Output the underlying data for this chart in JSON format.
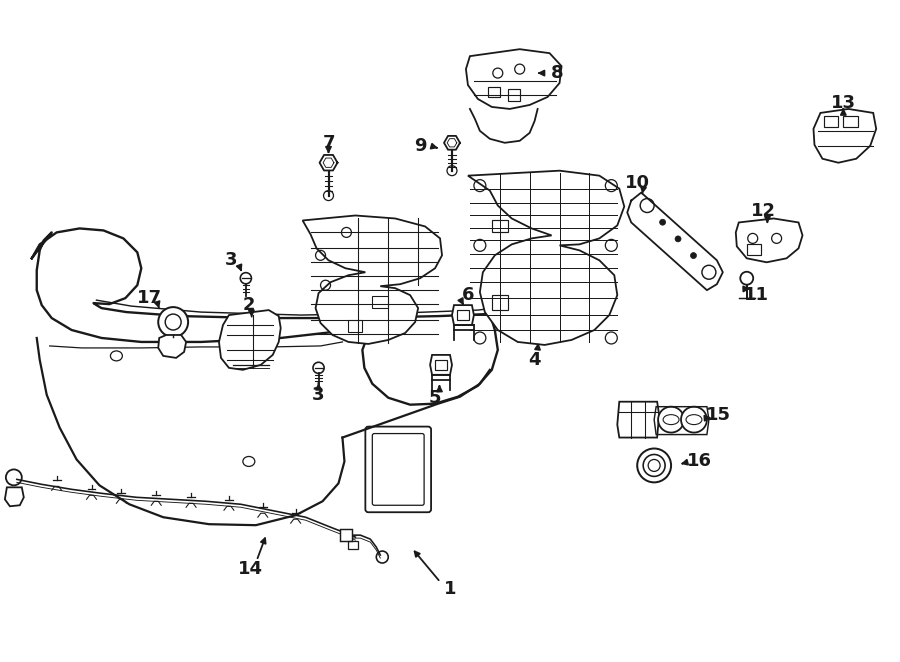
{
  "bg_color": "#ffffff",
  "line_color": "#1a1a1a",
  "lw": 1.3
}
